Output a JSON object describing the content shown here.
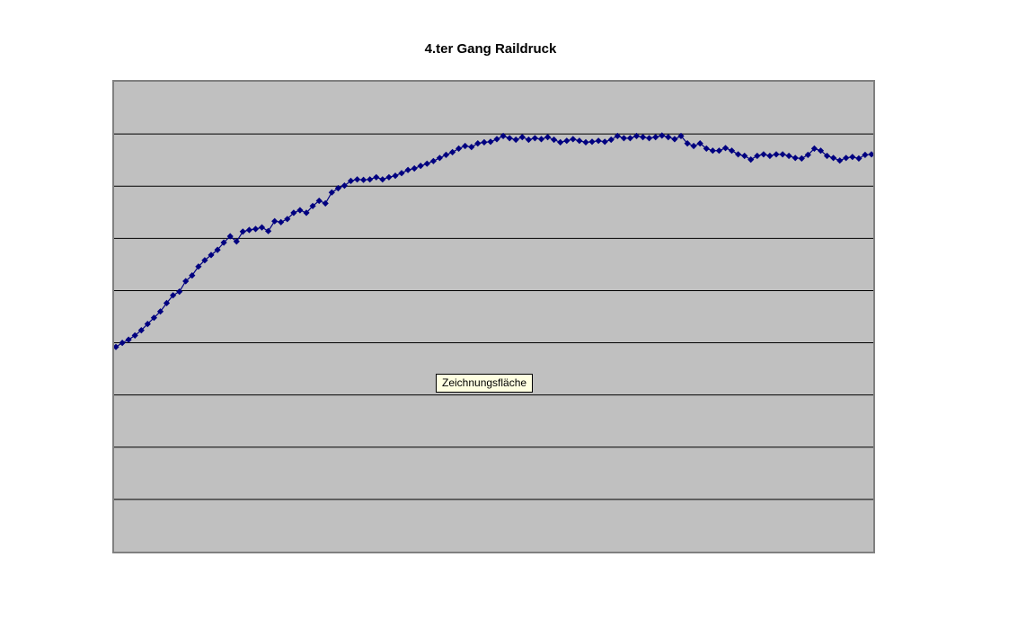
{
  "chart": {
    "title": "4.ter Gang Raildruck",
    "tooltip": {
      "text": "Zeichnungsfläche",
      "bg_color": "#ffffe1",
      "border_color": "#000000"
    },
    "colors": {
      "page_bg": "#ffffff",
      "plot_fill": "#c0c0c0",
      "plot_border": "#808080",
      "gridline": "#000000",
      "series": "#000080",
      "title_text": "#000000"
    }
  },
  "chart_data": {
    "type": "line",
    "title": "4.ter Gang Raildruck",
    "marker": "diamond",
    "xlabel": "",
    "ylabel": "",
    "legend_position": "none",
    "axis_tick_labels_visible": false,
    "grid": "horizontal gridlines only, 8 lines forming 9 equal bands",
    "ylim": [
      0,
      9
    ],
    "y_unit": "gridline units (axis unlabeled; values estimated from gridline spacing)",
    "x_description": "120 evenly spaced samples, x axis unlabeled",
    "values": [
      3.92,
      4.0,
      4.06,
      4.14,
      4.24,
      4.36,
      4.48,
      4.6,
      4.76,
      4.91,
      4.98,
      5.18,
      5.29,
      5.46,
      5.58,
      5.68,
      5.78,
      5.92,
      6.04,
      5.94,
      6.13,
      6.16,
      6.18,
      6.21,
      6.14,
      6.33,
      6.31,
      6.37,
      6.49,
      6.54,
      6.49,
      6.62,
      6.72,
      6.67,
      6.88,
      6.96,
      7.01,
      7.1,
      7.13,
      7.12,
      7.13,
      7.17,
      7.13,
      7.17,
      7.2,
      7.25,
      7.31,
      7.34,
      7.39,
      7.43,
      7.48,
      7.54,
      7.6,
      7.65,
      7.72,
      7.77,
      7.75,
      7.82,
      7.84,
      7.85,
      7.9,
      7.96,
      7.92,
      7.89,
      7.94,
      7.89,
      7.92,
      7.9,
      7.94,
      7.89,
      7.84,
      7.87,
      7.9,
      7.87,
      7.84,
      7.85,
      7.87,
      7.85,
      7.89,
      7.96,
      7.92,
      7.92,
      7.96,
      7.94,
      7.92,
      7.94,
      7.97,
      7.94,
      7.9,
      7.96,
      7.82,
      7.77,
      7.82,
      7.72,
      7.68,
      7.68,
      7.73,
      7.68,
      7.61,
      7.58,
      7.51,
      7.58,
      7.61,
      7.58,
      7.61,
      7.61,
      7.58,
      7.54,
      7.53,
      7.6,
      7.72,
      7.68,
      7.58,
      7.54,
      7.49,
      7.54,
      7.56,
      7.53,
      7.6,
      7.61
    ]
  }
}
